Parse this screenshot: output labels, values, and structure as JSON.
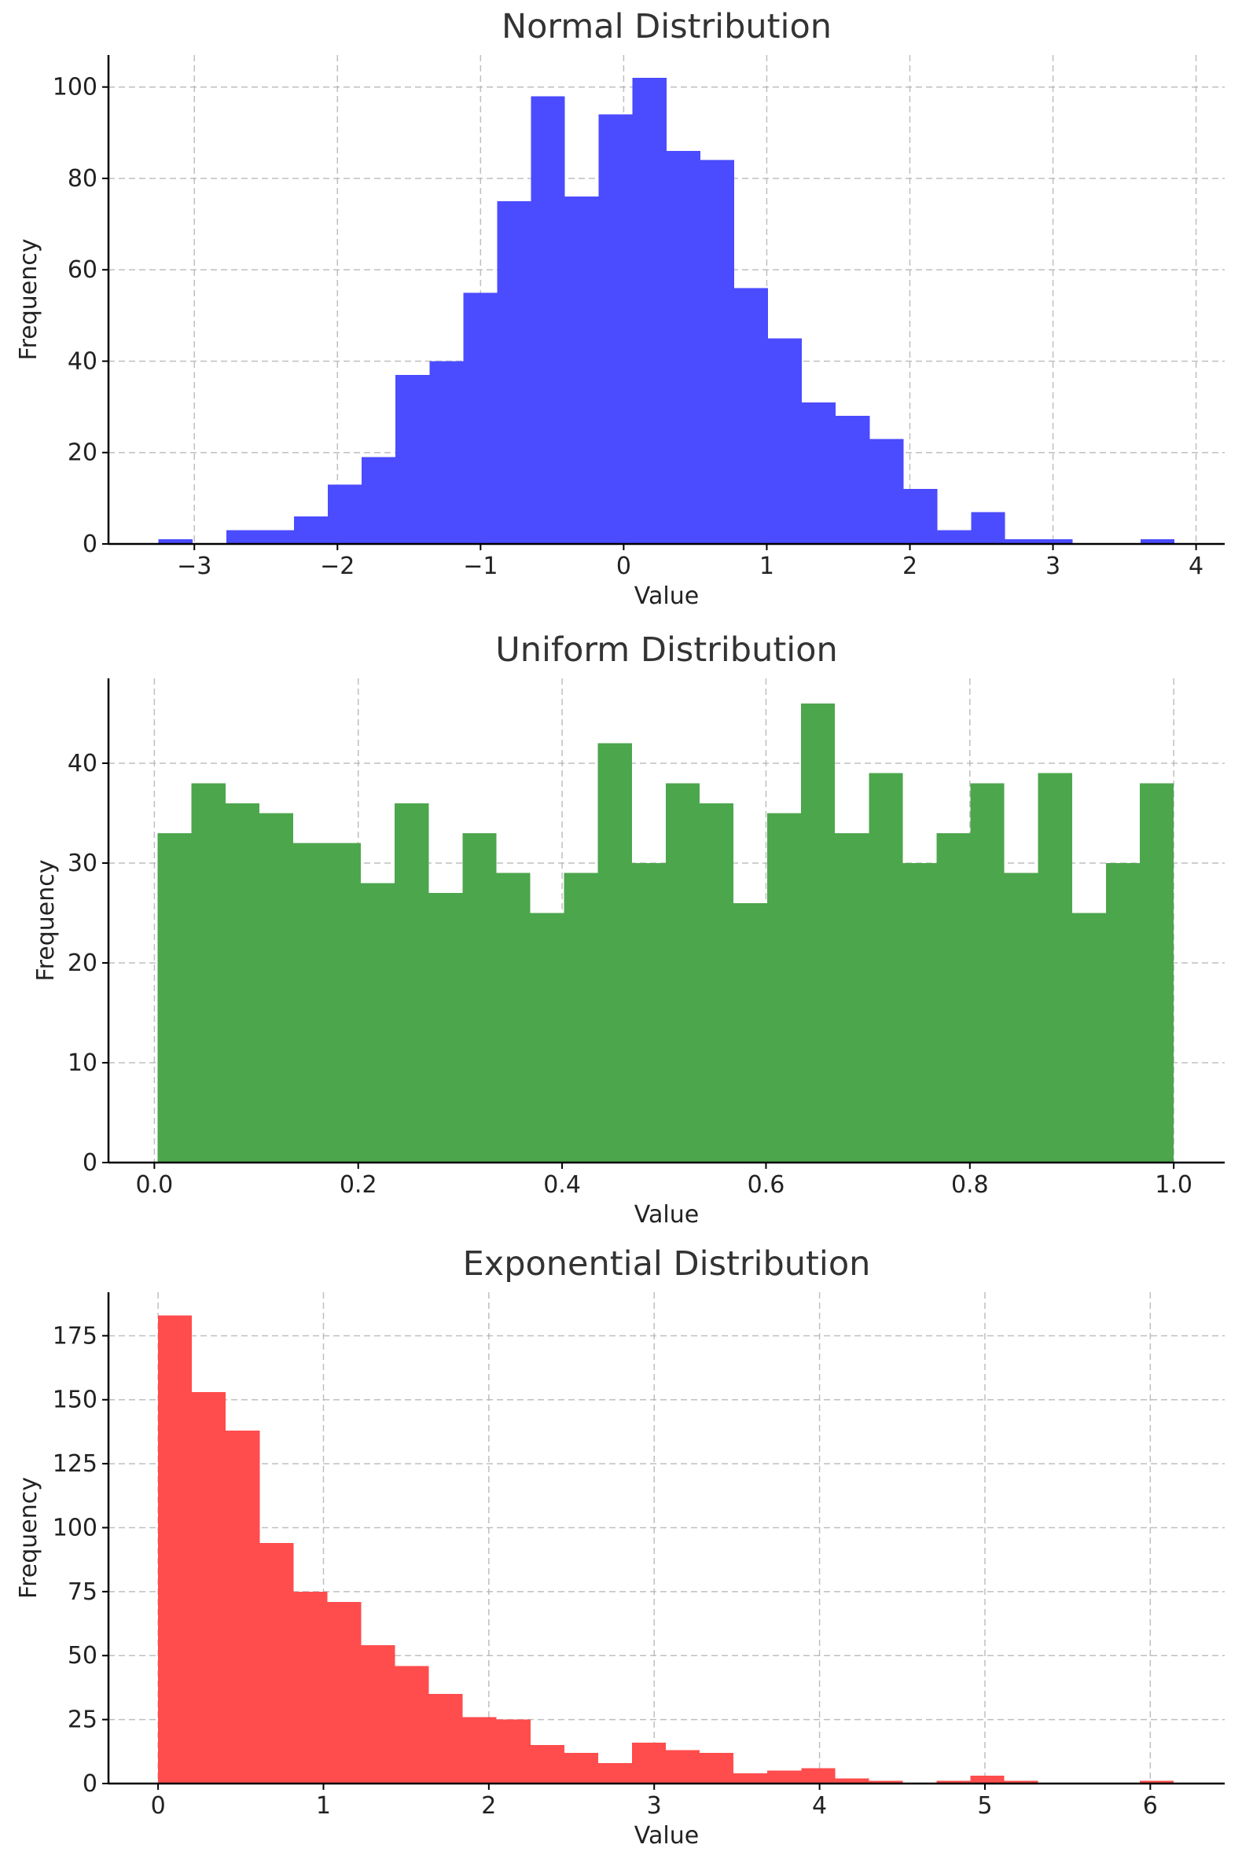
{
  "chart_data": [
    {
      "type": "bar",
      "title": "Normal Distribution",
      "xlabel": "Value",
      "ylabel": "Frequency",
      "color": "#4b4bff",
      "grid": true,
      "xlim": [
        -3.6,
        4.2
      ],
      "ylim": [
        0,
        107
      ],
      "xticks": [
        -3,
        -2,
        -1,
        0,
        1,
        2,
        3,
        4
      ],
      "xtick_labels": [
        "−3",
        "−2",
        "−1",
        "0",
        "1",
        "2",
        "3",
        "4"
      ],
      "yticks": [
        0,
        20,
        40,
        60,
        80,
        100
      ],
      "ytick_labels": [
        "0",
        "20",
        "40",
        "60",
        "80",
        "100"
      ],
      "bin_start": -3.25,
      "bin_width": 0.2366,
      "values": [
        1,
        0,
        3,
        3,
        6,
        13,
        19,
        37,
        40,
        55,
        75,
        98,
        76,
        94,
        102,
        86,
        84,
        56,
        45,
        31,
        28,
        23,
        12,
        3,
        7,
        1,
        1,
        0,
        0,
        1
      ]
    },
    {
      "type": "bar",
      "title": "Uniform Distribution",
      "xlabel": "Value",
      "ylabel": "Frequency",
      "color": "#4ca64c",
      "grid": true,
      "xlim": [
        -0.045,
        1.05
      ],
      "ylim": [
        0,
        48.5
      ],
      "xticks": [
        0.0,
        0.2,
        0.4,
        0.6,
        0.8,
        1.0
      ],
      "xtick_labels": [
        "0.0",
        "0.2",
        "0.4",
        "0.6",
        "0.8",
        "1.0"
      ],
      "yticks": [
        0,
        10,
        20,
        30,
        40
      ],
      "ytick_labels": [
        "0",
        "10",
        "20",
        "30",
        "40"
      ],
      "bin_start": 0.0033,
      "bin_width": 0.03322,
      "values": [
        33,
        38,
        36,
        35,
        32,
        32,
        28,
        36,
        27,
        33,
        29,
        25,
        29,
        42,
        30,
        38,
        36,
        26,
        35,
        46,
        33,
        39,
        30,
        33,
        38,
        29,
        39,
        25,
        30,
        38
      ]
    },
    {
      "type": "bar",
      "title": "Exponential Distribution",
      "xlabel": "Value",
      "ylabel": "Frequency",
      "color": "#ff4c4c",
      "grid": true,
      "xlim": [
        -0.3,
        6.45
      ],
      "ylim": [
        0,
        192
      ],
      "xticks": [
        0,
        1,
        2,
        3,
        4,
        5,
        6
      ],
      "xtick_labels": [
        "0",
        "1",
        "2",
        "3",
        "4",
        "5",
        "6"
      ],
      "yticks": [
        0,
        25,
        50,
        75,
        100,
        125,
        150,
        175
      ],
      "ytick_labels": [
        "0",
        "25",
        "50",
        "75",
        "100",
        "125",
        "150",
        "175"
      ],
      "bin_start": 0.0,
      "bin_width": 0.2047,
      "values": [
        183,
        153,
        138,
        94,
        75,
        71,
        54,
        46,
        35,
        26,
        25,
        15,
        12,
        8,
        16,
        13,
        12,
        4,
        5,
        6,
        2,
        1,
        0,
        1,
        3,
        1,
        0,
        0,
        0,
        1
      ]
    }
  ]
}
